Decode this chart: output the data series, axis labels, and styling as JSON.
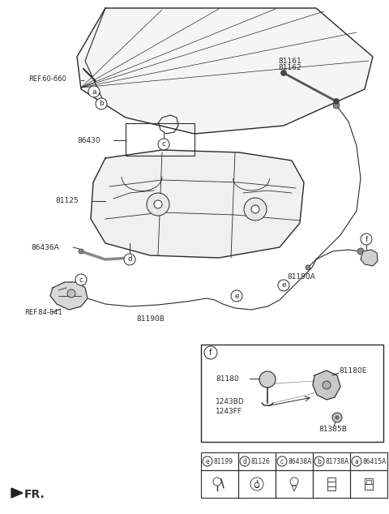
{
  "bg_color": "#ffffff",
  "line_color": "#2a2a2a",
  "fig_width": 4.8,
  "fig_height": 6.34,
  "parts": {
    "ref_60_660": "REF.60-660",
    "ref_84_841": "REF.84-841",
    "p81161": "81161",
    "p81162": "81162",
    "p86430": "86430",
    "p81125": "81125",
    "p86436A": "86436A",
    "p81190A": "81190A",
    "p81190B": "81190B",
    "p81180": "81180",
    "p81180E": "81180E",
    "p1243BD": "1243BD",
    "p1243FF": "1243FF",
    "p81385B": "81385B"
  },
  "table_parts": [
    {
      "label": "e",
      "part": "81199"
    },
    {
      "label": "d",
      "part": "81126"
    },
    {
      "label": "c",
      "part": "86438A"
    },
    {
      "label": "b",
      "part": "81738A"
    },
    {
      "label": "a",
      "part": "86415A"
    }
  ],
  "fr_label": "FR."
}
